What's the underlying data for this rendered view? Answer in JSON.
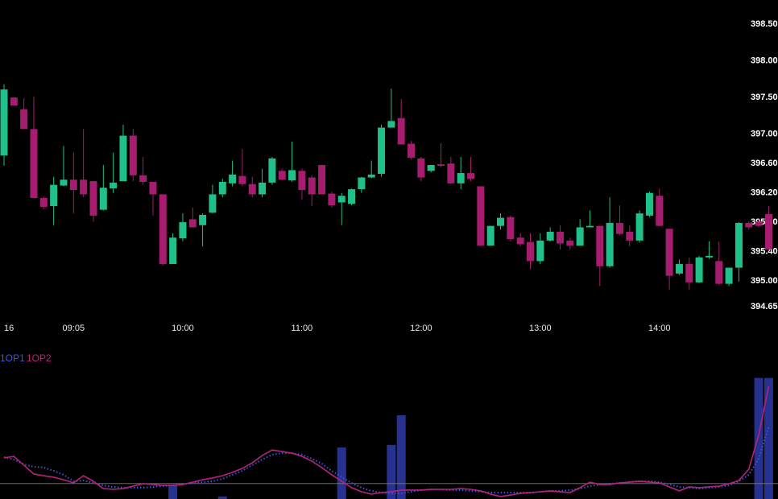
{
  "chart_data": [
    {
      "type": "candlestick",
      "categories": [
        "16",
        null,
        null,
        null,
        null,
        null,
        null,
        "09:05",
        null,
        null,
        null,
        null,
        null,
        null,
        null,
        null,
        null,
        null,
        "10:00",
        null,
        null,
        null,
        null,
        null,
        null,
        null,
        null,
        null,
        null,
        null,
        "11:00",
        null,
        null,
        null,
        null,
        null,
        null,
        null,
        null,
        null,
        null,
        null,
        "12:00",
        null,
        null,
        null,
        null,
        null,
        null,
        null,
        null,
        null,
        null,
        null,
        "13:00",
        null,
        null,
        null,
        null,
        null,
        null,
        null,
        null,
        null,
        null,
        null,
        "14:00",
        null,
        null,
        null,
        null,
        null,
        null,
        null,
        null,
        null,
        null,
        null
      ],
      "open": [
        396.71,
        397.5,
        397.34,
        397.07,
        396.13,
        396.02,
        396.3,
        396.38,
        396.38,
        396.36,
        395.97,
        396.26,
        396.36,
        396.98,
        396.44,
        396.35,
        396.18,
        395.23,
        395.58,
        395.84,
        395.76,
        395.93,
        396.18,
        396.33,
        396.43,
        396.32,
        396.18,
        396.34,
        396.5,
        396.37,
        396.5,
        396.41,
        396.58,
        396.19,
        396.07,
        396.05,
        396.25,
        396.41,
        396.46,
        397.09,
        397.22,
        396.87,
        396.67,
        396.5,
        396.59,
        396.6,
        396.33,
        396.47,
        396.29,
        395.48,
        395.75,
        395.87,
        395.59,
        395.53,
        395.27,
        395.55,
        395.67,
        395.55,
        395.48,
        395.73,
        395.75,
        395.2,
        395.79,
        395.67,
        395.55,
        395.89,
        396.16,
        395.71,
        395.1,
        395.23,
        394.98,
        395.32,
        395.27,
        394.96,
        395.18,
        395.79,
        395.81,
        395.91
      ],
      "high": [
        397.68,
        397.5,
        397.49,
        397.51,
        396.15,
        396.42,
        396.84,
        396.75,
        397.07,
        396.36,
        396.58,
        396.75,
        397.13,
        397.07,
        396.69,
        396.35,
        396.18,
        395.65,
        395.92,
        396.0,
        395.92,
        396.31,
        396.39,
        396.64,
        396.8,
        396.42,
        396.53,
        396.69,
        396.53,
        396.9,
        396.53,
        396.44,
        396.58,
        396.22,
        396.2,
        396.26,
        396.42,
        396.64,
        397.13,
        397.62,
        397.48,
        396.91,
        396.69,
        396.58,
        396.88,
        396.69,
        396.69,
        396.69,
        396.29,
        395.75,
        395.92,
        395.89,
        395.65,
        395.65,
        395.65,
        395.73,
        395.76,
        395.59,
        395.84,
        395.96,
        395.75,
        396.14,
        396.03,
        395.76,
        395.96,
        396.22,
        396.26,
        395.71,
        395.29,
        395.32,
        395.34,
        395.54,
        395.54,
        395.18,
        395.8,
        395.81,
        395.84,
        396.02
      ],
      "low": [
        396.57,
        397.39,
        397.07,
        396.13,
        395.98,
        395.76,
        396.29,
        395.92,
        396.14,
        395.81,
        395.96,
        396.2,
        396.36,
        396.36,
        396.31,
        395.89,
        395.21,
        395.23,
        395.54,
        395.73,
        395.47,
        395.92,
        396.14,
        396.29,
        396.29,
        396.14,
        396.14,
        396.31,
        396.37,
        396.35,
        396.11,
        396.02,
        396.18,
        396.0,
        395.76,
        396.03,
        396.2,
        396.4,
        396.42,
        397.09,
        396.86,
        396.66,
        396.36,
        396.48,
        396.55,
        396.32,
        396.25,
        396.36,
        395.48,
        395.48,
        395.7,
        395.54,
        395.47,
        395.16,
        395.23,
        395.54,
        395.43,
        395.43,
        395.48,
        395.73,
        394.93,
        395.18,
        395.62,
        395.47,
        395.52,
        395.87,
        395.74,
        394.88,
        395.08,
        394.88,
        394.97,
        395.3,
        394.94,
        394.93,
        394.99,
        395.7,
        395.73,
        395.41
      ],
      "close": [
        397.61,
        397.39,
        397.07,
        396.13,
        396.01,
        396.31,
        396.38,
        396.24,
        396.18,
        395.89,
        396.27,
        396.34,
        396.98,
        396.44,
        396.35,
        396.18,
        395.23,
        395.59,
        395.8,
        395.73,
        395.9,
        396.18,
        396.35,
        396.45,
        396.32,
        396.18,
        396.34,
        396.67,
        396.38,
        396.51,
        396.24,
        396.18,
        396.18,
        396.03,
        396.16,
        396.25,
        396.41,
        396.45,
        397.09,
        397.18,
        396.86,
        396.68,
        396.41,
        396.58,
        396.57,
        396.33,
        396.47,
        396.39,
        395.48,
        395.75,
        395.86,
        395.57,
        395.5,
        395.27,
        395.55,
        395.67,
        395.51,
        395.48,
        395.73,
        395.75,
        395.2,
        395.79,
        395.64,
        395.55,
        395.92,
        396.2,
        395.75,
        395.07,
        395.23,
        394.98,
        395.32,
        395.34,
        394.96,
        395.18,
        395.79,
        395.73,
        395.75,
        395.43
      ],
      "up_color": "#1fc08b",
      "down_color": "#a61c6e",
      "ylim": [
        394.55,
        398.83
      ],
      "yticks": [
        {
          "value": 398.5,
          "label": "398.50"
        },
        {
          "value": 398.0,
          "label": "398.00"
        },
        {
          "value": 397.5,
          "label": "397.50"
        },
        {
          "value": 397.0,
          "label": "397.00"
        },
        {
          "value": 396.6,
          "label": "396.60"
        },
        {
          "value": 396.2,
          "label": "396.20"
        },
        {
          "value": 395.8,
          "label": "395.80"
        },
        {
          "value": 395.4,
          "label": "395.40"
        },
        {
          "value": 395.0,
          "label": "395.00"
        },
        {
          "value": 394.65,
          "label": "394.65"
        }
      ]
    },
    {
      "type": "line",
      "series": [
        {
          "name": "1OP1",
          "color": "#3d55e0",
          "line_style": "dotted",
          "values": [
            32.5,
            30.6,
            26.9,
            25,
            24.4,
            21.9,
            18.8,
            13.8,
            14.4,
            12.5,
            10.6,
            9.4,
            8.8,
            8.8,
            8.8,
            9.4,
            10,
            10.6,
            11.3,
            12.5,
            13.1,
            13.8,
            15.6,
            18.8,
            21.9,
            26.3,
            30.6,
            34.4,
            35.6,
            35.6,
            34.4,
            31.3,
            27.5,
            21.9,
            16.9,
            12.5,
            8.8,
            6.3,
            5,
            4.4,
            4.4,
            5.6,
            6.9,
            7.5,
            7.5,
            6.9,
            6.9,
            6.3,
            5.6,
            5,
            5,
            5,
            5,
            5,
            5.6,
            6.3,
            6.3,
            6.9,
            8.1,
            10,
            11.3,
            11.9,
            12.5,
            13.1,
            13.8,
            13.8,
            13.1,
            11.3,
            9.4,
            8.8,
            8.1,
            8.8,
            9.4,
            10.6,
            13.8,
            18.8,
            31.3,
            56.3
          ]
        },
        {
          "name": "1OP2",
          "color": "#b8237a",
          "line_style": "solid",
          "values": [
            31.9,
            33.1,
            26.3,
            19.4,
            18.1,
            16.9,
            15,
            12.5,
            18.1,
            13.8,
            8.1,
            7.5,
            8.1,
            10,
            11.9,
            11.3,
            10.6,
            10.6,
            11.3,
            13.1,
            15,
            16.3,
            18.1,
            20.6,
            23.8,
            28.1,
            33.8,
            38.1,
            36.9,
            35.6,
            33.1,
            29.4,
            24.4,
            18.8,
            13.8,
            8.8,
            5.6,
            3.8,
            5,
            5.6,
            6.9,
            6.9,
            6.9,
            7.5,
            7.5,
            7.5,
            8.1,
            7.5,
            6.3,
            3.8,
            1.9,
            3.1,
            4.4,
            5,
            5.6,
            6.3,
            5.6,
            5,
            8.8,
            13.1,
            11.3,
            11.3,
            12.5,
            13.1,
            13.8,
            13.1,
            12.5,
            9.4,
            6.3,
            9.4,
            8.8,
            9.4,
            10,
            11.9,
            14.4,
            23.1,
            50,
            87.5
          ]
        }
      ],
      "histogram": {
        "color": "#27318f",
        "values": [
          0,
          0,
          0,
          0,
          0,
          0,
          0,
          0,
          0,
          0,
          0,
          0,
          0,
          0,
          0,
          0,
          0,
          11,
          0,
          0,
          0,
          0,
          2,
          0,
          0,
          0,
          0,
          0,
          0,
          0,
          0,
          0,
          0,
          0,
          40,
          0,
          0,
          0,
          0,
          42,
          65,
          0,
          0,
          0,
          0,
          0,
          0,
          0,
          0,
          0,
          0,
          0,
          0,
          0,
          0,
          0,
          0,
          0,
          0,
          0,
          0,
          0,
          0,
          0,
          0,
          0,
          0,
          0,
          0,
          0,
          0,
          0,
          0,
          0,
          0,
          0,
          94,
          94
        ]
      },
      "hline": 12,
      "ylim": [
        0,
        100
      ]
    }
  ]
}
